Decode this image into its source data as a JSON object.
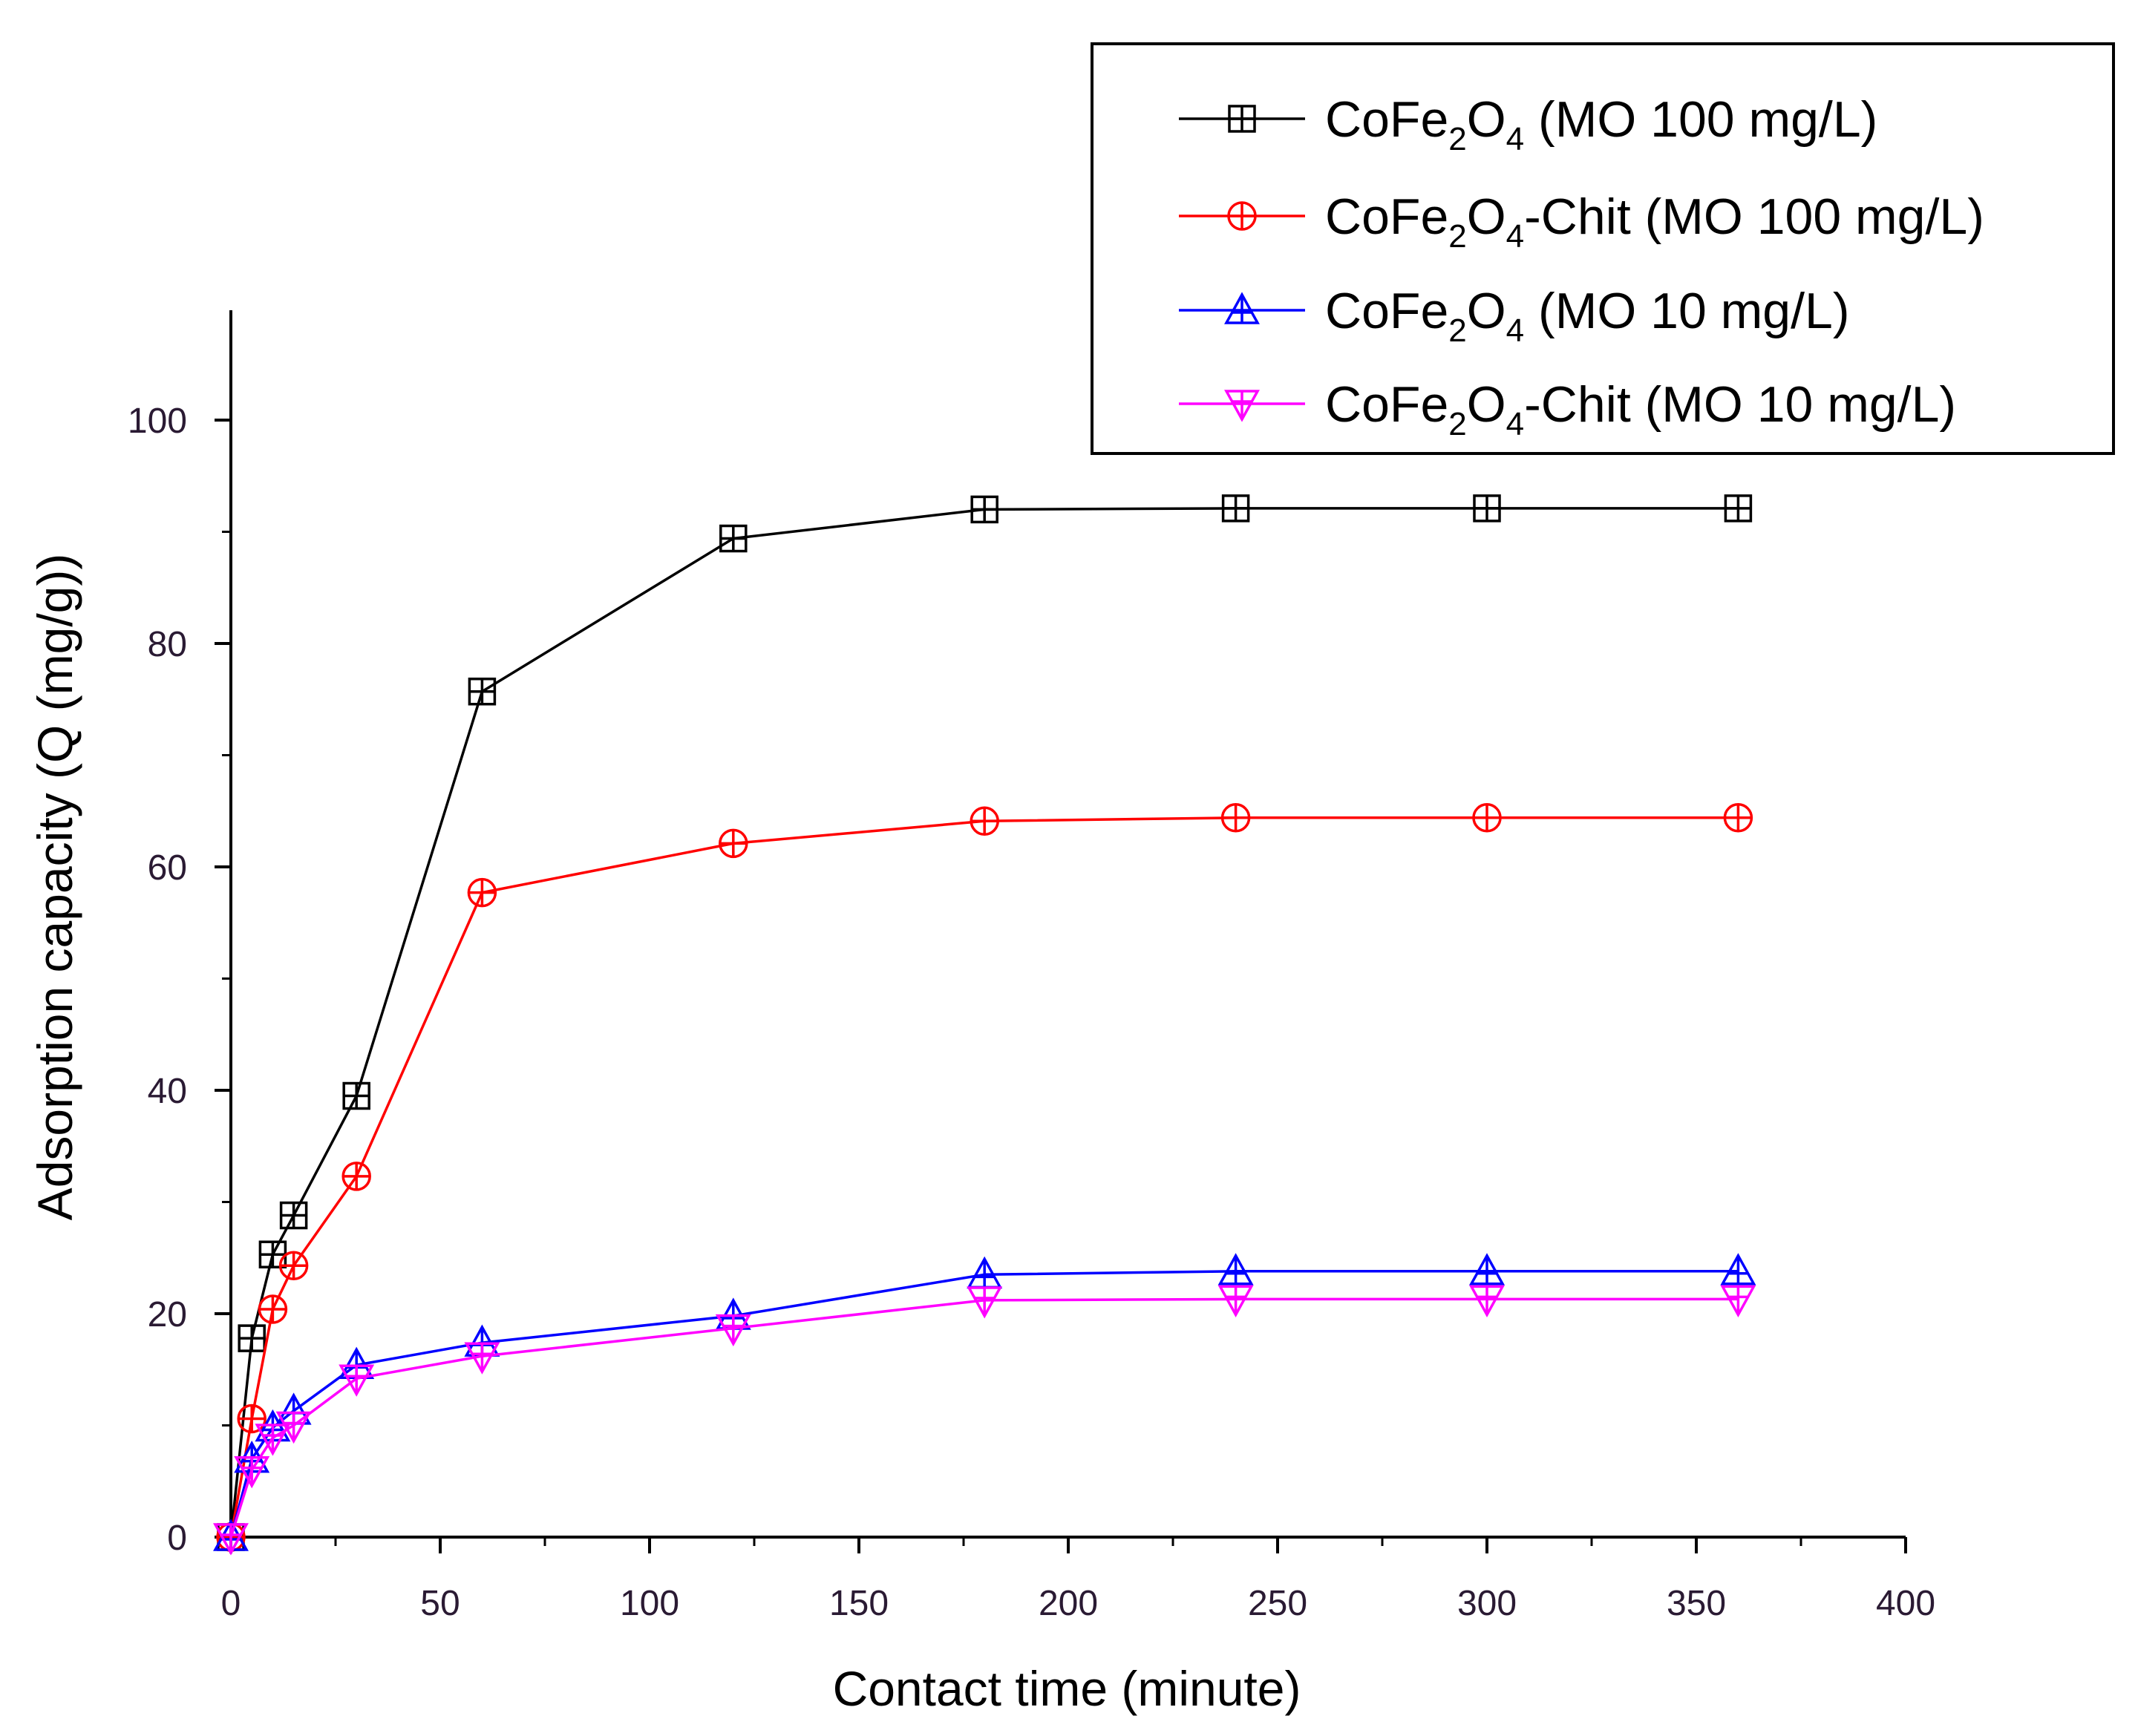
{
  "chart_data": {
    "type": "line",
    "title": "",
    "xlabel": "Contact time (minute)",
    "ylabel": "Adsorption capacity (Q (mg/g))",
    "xlim": [
      0,
      400
    ],
    "ylim": [
      0,
      110
    ],
    "xticks": [
      0,
      50,
      100,
      150,
      200,
      250,
      300,
      350,
      400
    ],
    "yticks": [
      0,
      20,
      40,
      60,
      80,
      100
    ],
    "grid": false,
    "legend_position": "top-right",
    "series": [
      {
        "name": "CoFe2O4 (MO 100 mg/L)",
        "legend_parts": [
          "CoFe",
          "2",
          "O",
          "4",
          " (MO 100 mg/L)"
        ],
        "color": "#000000",
        "marker": "square-plus",
        "x": [
          0,
          5,
          10,
          15,
          30,
          60,
          120,
          180,
          240,
          300,
          360
        ],
        "y": [
          0,
          17.8,
          25.3,
          28.8,
          39.5,
          75.7,
          89.4,
          92.0,
          92.1,
          92.1,
          92.1
        ]
      },
      {
        "name": "CoFe2O4-Chit (MO 100 mg/L)",
        "legend_parts": [
          "CoFe",
          "2",
          "O",
          "4",
          "-Chit (MO 100 mg/L)"
        ],
        "color": "#ff0000",
        "marker": "circle-plus",
        "x": [
          0,
          5,
          10,
          15,
          30,
          60,
          120,
          180,
          240,
          300,
          360
        ],
        "y": [
          0,
          10.6,
          20.4,
          24.3,
          32.3,
          57.7,
          62.1,
          64.1,
          64.4,
          64.4,
          64.4
        ]
      },
      {
        "name": "CoFe2O4 (MO 10 mg/L)",
        "legend_parts": [
          "CoFe",
          "2",
          "O",
          "4",
          " (MO 10 mg/L)"
        ],
        "color": "#0000ff",
        "marker": "triangle-up-plus",
        "x": [
          0,
          5,
          10,
          15,
          30,
          60,
          120,
          180,
          240,
          300,
          360
        ],
        "y": [
          0,
          7.0,
          9.8,
          11.3,
          15.4,
          17.4,
          19.8,
          23.5,
          23.8,
          23.8,
          23.8
        ]
      },
      {
        "name": "CoFe2O4-Chit (MO 10 mg/L)",
        "legend_parts": [
          "CoFe",
          "2",
          "O",
          "4",
          "-Chit (MO 10 mg/L)"
        ],
        "color": "#ff00ff",
        "marker": "triangle-down-plus",
        "x": [
          0,
          5,
          10,
          15,
          30,
          60,
          120,
          180,
          240,
          300,
          360
        ],
        "y": [
          0,
          6.0,
          8.9,
          10.0,
          14.2,
          16.2,
          18.7,
          21.2,
          21.3,
          21.3,
          21.3
        ]
      }
    ]
  }
}
